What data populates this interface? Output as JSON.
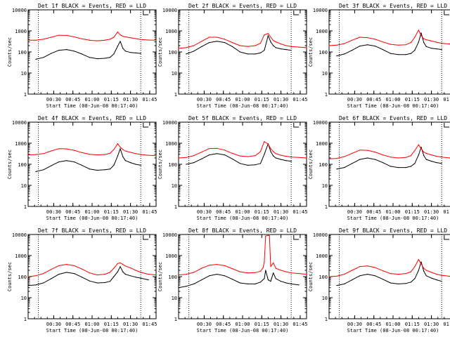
{
  "x_tick_labels": [
    "00:30",
    "00:45",
    "01:00",
    "01:15",
    "01:30",
    "01:45"
  ],
  "y_tick_labels": [
    "10000",
    "1000",
    "100",
    "10",
    "1"
  ],
  "ylabel": "Counts/sec",
  "xlabel": "Start Time (08-Jun-08 00:17:40)",
  "colors": {
    "events": "#000000",
    "lld": "#ff0000",
    "axes": "#000000"
  },
  "chart_data": [
    {
      "type": "line",
      "title": "Det 1f BLACK = Events, RED = LLD",
      "xlabel": "Start Time (08-Jun-08 00:17:40)",
      "ylabel": "Counts/sec",
      "x_unit": "minutes after 00:17:40",
      "ylog": true,
      "ylim": [
        1,
        10000
      ],
      "xlim": [
        0,
        100
      ],
      "series": [
        {
          "name": "Events",
          "x": [
            6,
            12,
            18,
            24,
            30,
            36,
            42,
            48,
            54,
            60,
            64,
            67,
            70,
            72,
            74,
            76,
            80,
            84,
            88
          ],
          "y": [
            45,
            55,
            85,
            120,
            130,
            110,
            80,
            55,
            48,
            50,
            55,
            80,
            190,
            320,
            150,
            110,
            95,
            90,
            85
          ]
        },
        {
          "name": "LLD",
          "x": [
            0,
            6,
            12,
            18,
            24,
            30,
            36,
            42,
            48,
            54,
            60,
            64,
            67,
            70,
            72,
            74,
            76,
            80,
            84,
            88,
            94,
            100
          ],
          "y": [
            360,
            360,
            400,
            500,
            620,
            610,
            520,
            420,
            360,
            340,
            360,
            400,
            500,
            900,
            650,
            560,
            520,
            470,
            430,
            390,
            370,
            360
          ]
        }
      ]
    },
    {
      "type": "line",
      "title": "Det 2f BLACK = Events, RED = LLD",
      "xlabel": "Start Time (08-Jun-08 00:17:40)",
      "ylabel": "Counts/sec",
      "x_unit": "minutes after 00:17:40",
      "ylog": true,
      "ylim": [
        1,
        10000
      ],
      "xlim": [
        0,
        100
      ],
      "series": [
        {
          "name": "Events",
          "x": [
            6,
            12,
            18,
            24,
            30,
            36,
            42,
            48,
            54,
            60,
            64,
            67,
            70,
            72,
            74,
            76,
            80,
            84,
            88
          ],
          "y": [
            80,
            110,
            180,
            280,
            320,
            280,
            180,
            100,
            80,
            80,
            90,
            120,
            600,
            300,
            200,
            160,
            140,
            130,
            120
          ]
        },
        {
          "name": "LLD",
          "x": [
            0,
            6,
            12,
            18,
            24,
            30,
            36,
            42,
            48,
            54,
            60,
            64,
            67,
            70,
            72,
            74,
            76,
            80,
            84,
            88,
            94,
            100
          ],
          "y": [
            150,
            160,
            200,
            320,
            500,
            500,
            400,
            280,
            200,
            180,
            200,
            260,
            650,
            750,
            500,
            350,
            300,
            240,
            200,
            180,
            170,
            160
          ]
        }
      ]
    },
    {
      "type": "line",
      "title": "Det 3f BLACK = Events, RED = LLD",
      "xlabel": "Start Time (08-Jun-08 00:17:40)",
      "ylabel": "Counts/sec",
      "x_unit": "minutes after 00:17:40",
      "ylog": true,
      "ylim": [
        1,
        10000
      ],
      "xlim": [
        0,
        100
      ],
      "series": [
        {
          "name": "Events",
          "x": [
            6,
            12,
            18,
            24,
            30,
            36,
            42,
            48,
            54,
            60,
            64,
            67,
            70,
            72,
            74,
            76,
            80,
            84,
            88
          ],
          "y": [
            65,
            80,
            120,
            190,
            220,
            190,
            130,
            85,
            75,
            75,
            85,
            120,
            300,
            800,
            280,
            180,
            150,
            140,
            130
          ]
        },
        {
          "name": "LLD",
          "x": [
            0,
            6,
            12,
            18,
            24,
            30,
            36,
            42,
            48,
            54,
            60,
            64,
            67,
            70,
            72,
            74,
            76,
            80,
            84,
            88,
            94,
            100
          ],
          "y": [
            200,
            210,
            250,
            360,
            500,
            480,
            400,
            300,
            230,
            210,
            220,
            280,
            500,
            1100,
            600,
            420,
            380,
            330,
            290,
            260,
            240,
            230
          ]
        }
      ]
    },
    {
      "type": "line",
      "title": "Det 4f BLACK = Events, RED = LLD",
      "xlabel": "Start Time (08-Jun-08 00:17:40)",
      "ylabel": "Counts/sec",
      "x_unit": "minutes after 00:17:40",
      "ylog": true,
      "ylim": [
        1,
        10000
      ],
      "xlim": [
        0,
        100
      ],
      "series": [
        {
          "name": "Events",
          "x": [
            6,
            12,
            18,
            24,
            30,
            36,
            42,
            48,
            54,
            60,
            64,
            67,
            70,
            72,
            74,
            76,
            80,
            84,
            88
          ],
          "y": [
            45,
            55,
            85,
            130,
            150,
            130,
            90,
            60,
            52,
            55,
            60,
            90,
            250,
            550,
            230,
            150,
            120,
            100,
            90
          ]
        },
        {
          "name": "LLD",
          "x": [
            0,
            6,
            12,
            18,
            24,
            30,
            36,
            42,
            48,
            54,
            60,
            64,
            67,
            70,
            72,
            74,
            76,
            80,
            84,
            88,
            94,
            100
          ],
          "y": [
            280,
            290,
            320,
            430,
            550,
            540,
            460,
            360,
            300,
            280,
            290,
            330,
            500,
            950,
            650,
            500,
            430,
            370,
            320,
            290,
            270,
            260
          ]
        }
      ]
    },
    {
      "type": "line",
      "title": "Det 5f BLACK = Events, RED = LLD",
      "xlabel": "Start Time (08-Jun-08 00:17:40)",
      "ylabel": "Counts/sec",
      "x_unit": "minutes after 00:17:40",
      "ylog": true,
      "ylim": [
        1,
        10000
      ],
      "xlim": [
        0,
        100
      ],
      "series": [
        {
          "name": "Events",
          "x": [
            6,
            12,
            18,
            24,
            30,
            36,
            42,
            48,
            54,
            60,
            64,
            67,
            70,
            72,
            74,
            76,
            80,
            84,
            88
          ],
          "y": [
            100,
            120,
            180,
            280,
            320,
            280,
            180,
            110,
            90,
            95,
            110,
            300,
            950,
            400,
            250,
            200,
            170,
            150,
            140
          ]
        },
        {
          "name": "LLD",
          "x": [
            0,
            6,
            12,
            18,
            24,
            30,
            36,
            42,
            48,
            54,
            60,
            64,
            67,
            70,
            72,
            74,
            76,
            80,
            84,
            88,
            94,
            100
          ],
          "y": [
            200,
            210,
            260,
            380,
            560,
            570,
            470,
            330,
            250,
            230,
            260,
            400,
            1200,
            900,
            550,
            400,
            320,
            270,
            240,
            220,
            210,
            200
          ]
        }
      ]
    },
    {
      "type": "line",
      "title": "Det 6f BLACK = Events, RED = LLD",
      "xlabel": "Start Time (08-Jun-08 00:17:40)",
      "ylabel": "Counts/sec",
      "x_unit": "minutes after 00:17:40",
      "ylog": true,
      "ylim": [
        1,
        10000
      ],
      "xlim": [
        0,
        100
      ],
      "series": [
        {
          "name": "Events",
          "x": [
            6,
            12,
            18,
            24,
            30,
            36,
            42,
            48,
            54,
            60,
            64,
            67,
            70,
            72,
            74,
            76,
            80,
            84,
            88
          ],
          "y": [
            60,
            70,
            110,
            170,
            200,
            170,
            120,
            80,
            70,
            70,
            80,
            110,
            280,
            650,
            260,
            170,
            140,
            120,
            110
          ]
        },
        {
          "name": "LLD",
          "x": [
            0,
            6,
            12,
            18,
            24,
            30,
            36,
            42,
            48,
            54,
            60,
            64,
            67,
            70,
            72,
            74,
            76,
            80,
            84,
            88,
            94,
            100
          ],
          "y": [
            180,
            190,
            230,
            330,
            470,
            460,
            380,
            280,
            220,
            200,
            210,
            260,
            450,
            850,
            550,
            380,
            330,
            280,
            240,
            220,
            200,
            190
          ]
        }
      ]
    },
    {
      "type": "line",
      "title": "Det 7f BLACK = Events, RED = LLD",
      "xlabel": "Start Time (08-Jun-08 00:17:40)",
      "ylabel": "Counts/sec",
      "x_unit": "minutes after 00:17:40",
      "ylog": true,
      "ylim": [
        1,
        10000
      ],
      "xlim": [
        0,
        100
      ],
      "series": [
        {
          "name": "Events",
          "x": [
            0,
            6,
            12,
            18,
            24,
            30,
            36,
            42,
            48,
            54,
            60,
            64,
            67,
            70,
            72,
            74,
            76,
            80,
            84,
            88,
            94
          ],
          "y": [
            38,
            40,
            50,
            80,
            130,
            160,
            140,
            95,
            62,
            50,
            52,
            60,
            100,
            170,
            300,
            170,
            130,
            110,
            95,
            85,
            70
          ]
        },
        {
          "name": "LLD",
          "x": [
            0,
            6,
            12,
            18,
            24,
            30,
            36,
            42,
            48,
            54,
            60,
            64,
            67,
            70,
            72,
            74,
            76,
            80,
            84,
            88,
            94,
            100
          ],
          "y": [
            100,
            110,
            140,
            220,
            330,
            380,
            330,
            230,
            150,
            120,
            130,
            160,
            250,
            420,
            450,
            380,
            320,
            260,
            200,
            160,
            130,
            120
          ]
        }
      ]
    },
    {
      "type": "line",
      "title": "Det 8f BLACK = Events, RED = LLD",
      "xlabel": "Start Time (08-Jun-08 00:17:40)",
      "ylabel": "Counts/sec",
      "x_unit": "minutes after 00:17:40",
      "ylog": true,
      "ylim": [
        1,
        10000
      ],
      "xlim": [
        0,
        100
      ],
      "series": [
        {
          "name": "Events",
          "x": [
            0,
            6,
            12,
            18,
            24,
            30,
            36,
            42,
            48,
            54,
            60,
            64,
            67,
            68,
            70,
            72,
            74,
            76,
            80,
            84,
            88,
            94
          ],
          "y": [
            30,
            35,
            45,
            70,
            110,
            130,
            110,
            75,
            50,
            45,
            45,
            55,
            80,
            200,
            70,
            60,
            150,
            80,
            60,
            50,
            45,
            40
          ]
        },
        {
          "name": "LLD",
          "x": [
            0,
            6,
            12,
            18,
            24,
            30,
            36,
            42,
            48,
            54,
            60,
            64,
            66,
            67,
            68,
            70,
            71,
            72,
            74,
            76,
            80,
            84,
            88,
            94,
            100
          ],
          "y": [
            120,
            130,
            160,
            250,
            350,
            380,
            330,
            240,
            170,
            150,
            155,
            180,
            260,
            500,
            8500,
            9000,
            8800,
            300,
            450,
            250,
            200,
            170,
            150,
            140,
            130
          ]
        }
      ]
    },
    {
      "type": "line",
      "title": "Det 9f BLACK = Events, RED = LLD",
      "xlabel": "Start Time (08-Jun-08 00:17:40)",
      "ylabel": "Counts/sec",
      "x_unit": "minutes after 00:17:40",
      "ylog": true,
      "ylim": [
        1,
        10000
      ],
      "xlim": [
        0,
        100
      ],
      "series": [
        {
          "name": "Events",
          "x": [
            6,
            12,
            18,
            24,
            30,
            36,
            42,
            48,
            54,
            60,
            64,
            67,
            70,
            72,
            74,
            76,
            80,
            84,
            88
          ],
          "y": [
            38,
            45,
            70,
            110,
            130,
            110,
            75,
            50,
            45,
            47,
            55,
            80,
            200,
            500,
            180,
            110,
            85,
            70,
            60
          ]
        },
        {
          "name": "LLD",
          "x": [
            0,
            6,
            12,
            18,
            24,
            30,
            36,
            42,
            48,
            54,
            60,
            64,
            67,
            70,
            72,
            74,
            76,
            80,
            84,
            88,
            94,
            100
          ],
          "y": [
            100,
            105,
            130,
            200,
            300,
            320,
            270,
            190,
            140,
            130,
            140,
            170,
            300,
            650,
            400,
            250,
            200,
            160,
            130,
            115,
            105,
            100
          ]
        }
      ]
    }
  ]
}
